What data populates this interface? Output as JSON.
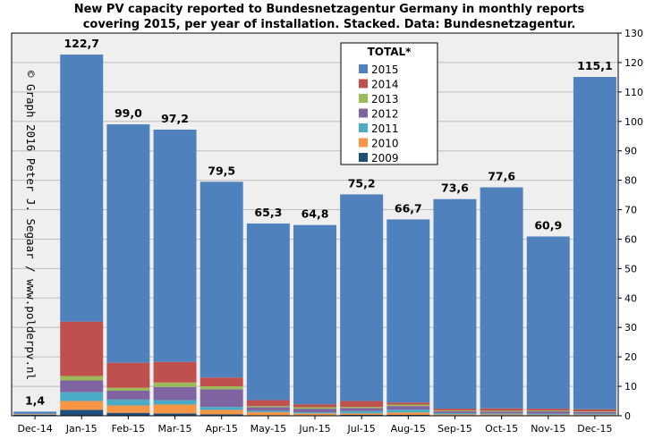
{
  "chart_data": {
    "type": "bar",
    "stacked": true,
    "title_lines": [
      "New PV capacity reported to Bundesnetzagentur Germany in monthly reports",
      "covering 2015, per year of installation. Stacked. Data: Bundesnetzagentur."
    ],
    "watermark": "© Graph 2016 Peter J. Segaar / www.polderpv.nl",
    "categories": [
      "Dec-14",
      "Jan-15",
      "Feb-15",
      "Mar-15",
      "Apr-15",
      "May-15",
      "Jun-15",
      "Jul-15",
      "Aug-15",
      "Sep-15",
      "Oct-15",
      "Nov-15",
      "Dec-15"
    ],
    "totals": [
      "1,4",
      "122,7",
      "99,0",
      "97,2",
      "79,5",
      "65,3",
      "64,8",
      "75,2",
      "66,7",
      "73,6",
      "77,6",
      "60,9",
      "115,1"
    ],
    "ylim": [
      0,
      130
    ],
    "yticks": [
      0,
      10,
      20,
      30,
      40,
      50,
      60,
      70,
      80,
      90,
      100,
      110,
      120,
      130
    ],
    "y_axis_side": "right",
    "grid": true,
    "legend": {
      "title": "TOTAL*",
      "placement": "top-center"
    },
    "series": [
      {
        "name": "2009",
        "color": "#1F4E79",
        "values": [
          0.3,
          2.0,
          1.0,
          0.8,
          0.5,
          0.2,
          0.2,
          0.3,
          0.3,
          0.2,
          0.2,
          0.2,
          0.2
        ]
      },
      {
        "name": "2010",
        "color": "#F79646",
        "values": [
          0.2,
          3.0,
          2.5,
          3.0,
          1.5,
          1.0,
          0.6,
          0.5,
          0.8,
          0.3,
          0.3,
          0.2,
          0.2
        ]
      },
      {
        "name": "2011",
        "color": "#4BACC6",
        "values": [
          0.1,
          3.0,
          2.0,
          1.5,
          1.0,
          0.5,
          0.4,
          0.8,
          1.0,
          0.4,
          0.3,
          0.3,
          0.3
        ]
      },
      {
        "name": "2012",
        "color": "#8064A2",
        "values": [
          0.1,
          4.0,
          3.0,
          4.5,
          6.0,
          1.2,
          1.2,
          1.0,
          1.2,
          0.6,
          0.6,
          0.8,
          0.6
        ]
      },
      {
        "name": "2013",
        "color": "#9BBB59",
        "values": [
          0.0,
          1.5,
          1.0,
          1.5,
          1.0,
          0.4,
          0.5,
          0.4,
          0.5,
          0.3,
          0.3,
          0.3,
          0.2
        ]
      },
      {
        "name": "2014",
        "color": "#C0504D",
        "values": [
          0.0,
          18.5,
          8.5,
          7.0,
          3.0,
          2.0,
          1.0,
          2.0,
          0.7,
          0.6,
          0.8,
          0.6,
          0.7
        ]
      },
      {
        "name": "2015",
        "color": "#4F81BD",
        "values": [
          0.7,
          90.7,
          81.0,
          78.9,
          66.5,
          60.0,
          60.9,
          70.2,
          62.2,
          71.2,
          75.1,
          58.5,
          112.9
        ]
      }
    ]
  }
}
